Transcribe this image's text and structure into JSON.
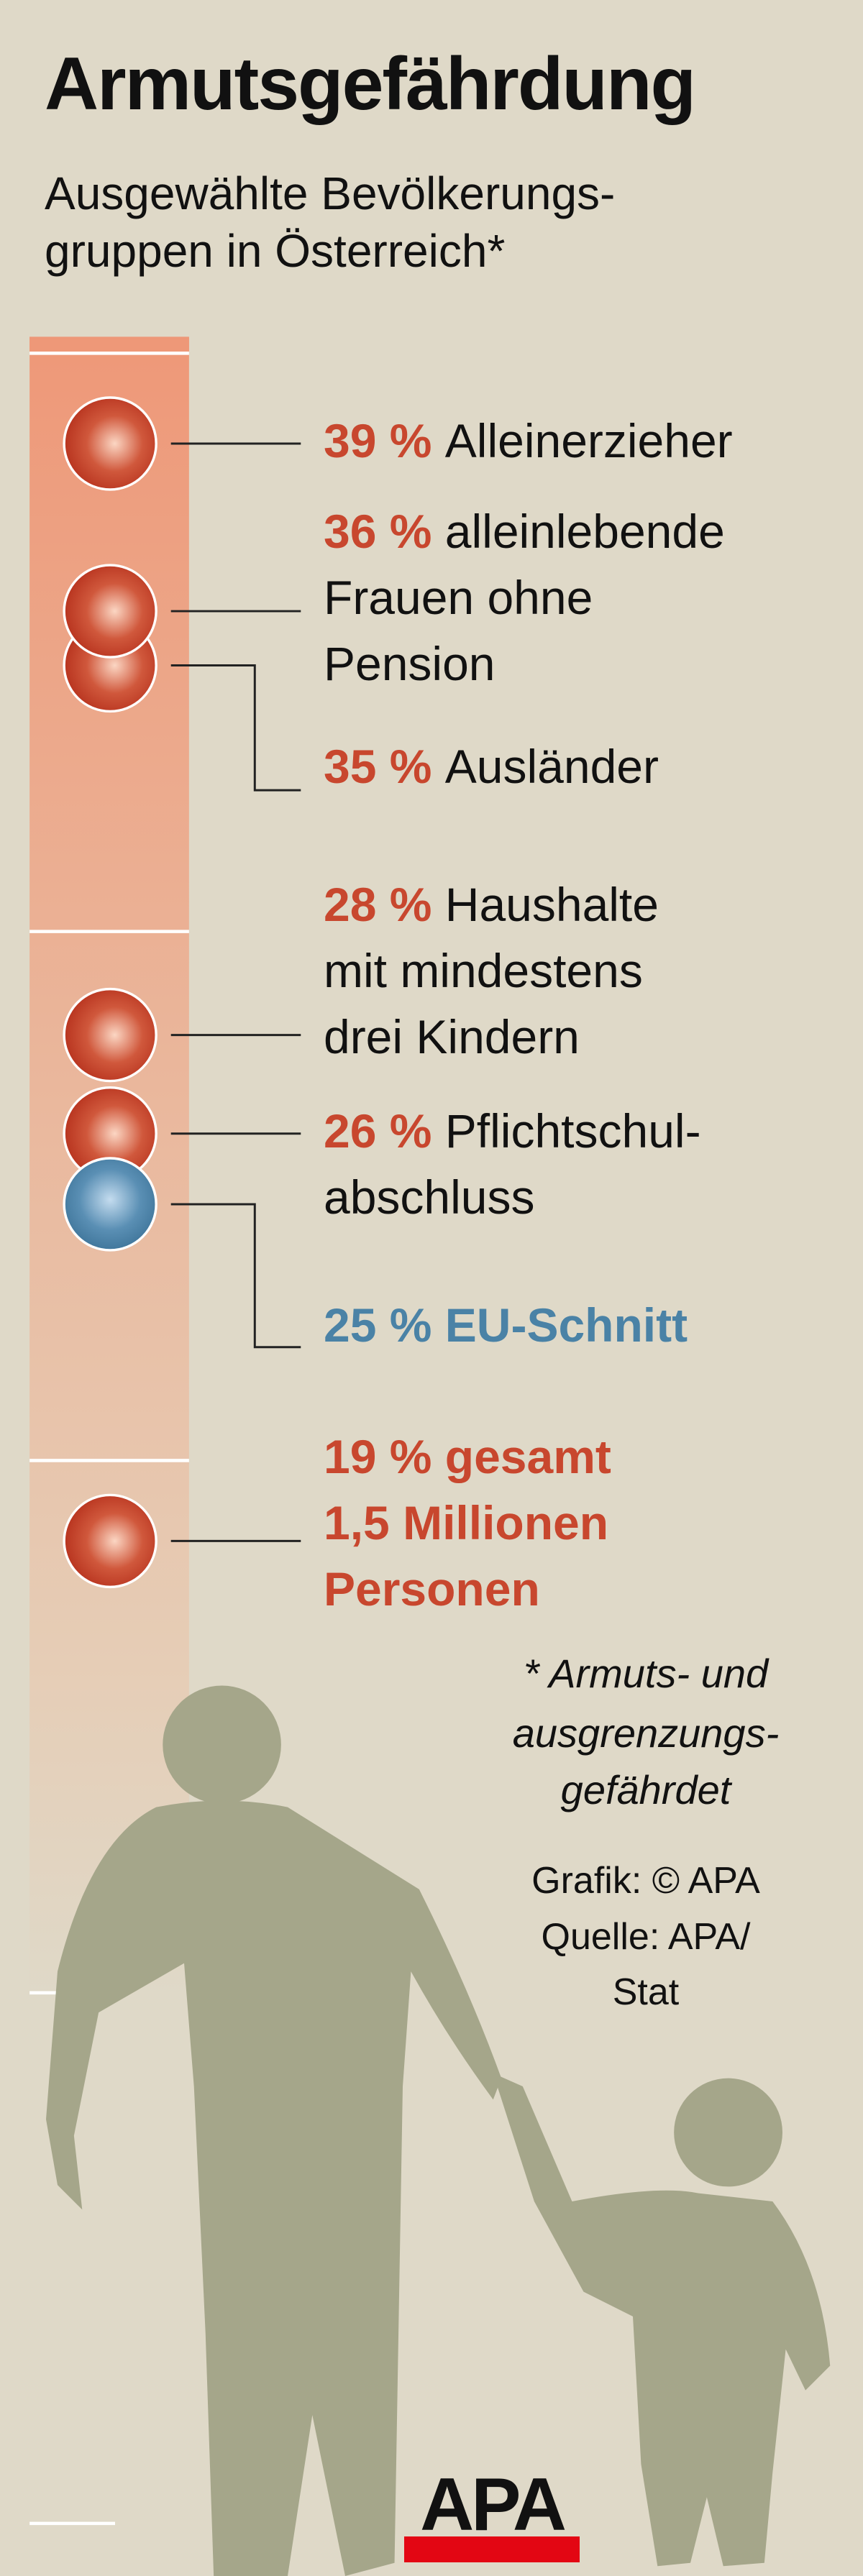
{
  "header": {
    "title": "Armutsgefährdung",
    "subtitle_line1": "Ausgewählte Bevölkerungs-",
    "subtitle_line2": "gruppen in Österreich*"
  },
  "chart_data": {
    "type": "scatter",
    "title": "Armutsgefährdung",
    "subtitle": "Ausgewählte Bevölkerungsgruppen in Österreich*",
    "unit": "%",
    "points": [
      {
        "value": 39,
        "pct": "39 %",
        "lines": [
          "Alleinerzieher"
        ],
        "color": "#c8472e"
      },
      {
        "value": 36,
        "pct": "36 %",
        "lines": [
          "alleinlebende",
          "Frauen ohne",
          "Pension"
        ],
        "color": "#c8472e"
      },
      {
        "value": 35,
        "pct": "35 %",
        "lines": [
          "Ausländer"
        ],
        "color": "#c8472e"
      },
      {
        "value": 28,
        "pct": "28 %",
        "lines": [
          "Haushalte",
          "mit mindestens",
          "drei Kindern"
        ],
        "color": "#c8472e"
      },
      {
        "value": 26,
        "pct": "26 %",
        "lines": [
          "Pflichtschul-",
          "abschluss"
        ],
        "color": "#c8472e"
      },
      {
        "value": 25,
        "pct": "25 %",
        "lines": [
          "EU-Schnitt"
        ],
        "color": "#4a82a6",
        "highlight": true
      },
      {
        "value": 19,
        "pct": "19 %",
        "lines": [
          "gesamt",
          "1,5 Millionen",
          "Personen"
        ],
        "color": "#c8472e",
        "highlight": true
      }
    ]
  },
  "footnote": {
    "line1": "* Armuts- und",
    "line2": "ausgrenzungs-",
    "line3": "gefährdet"
  },
  "credits": {
    "line1": "Grafik: © APA",
    "line2": "Quelle: APA/",
    "line3": "Stat"
  },
  "logo": {
    "text": "APA"
  },
  "colors": {
    "background": "#dfd9c8",
    "bar": "#ee9a7a",
    "red": "#c8472e",
    "blue": "#4a82a6",
    "silhouette": "#a5a68a"
  }
}
